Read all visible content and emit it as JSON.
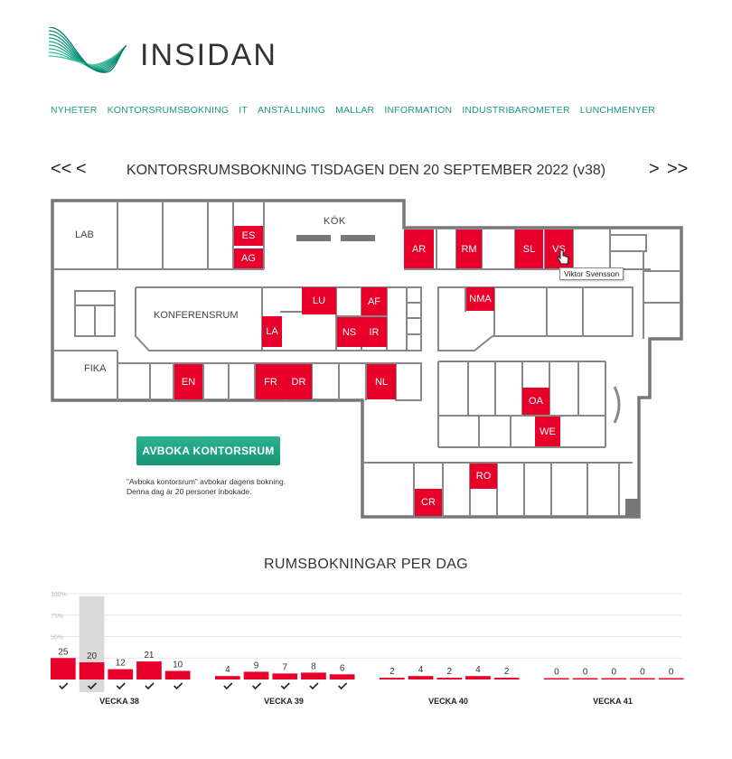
{
  "brand": {
    "name": "INSIDAN",
    "accent": "#1a9b86"
  },
  "nav": [
    "NYHETER",
    "KONTORSRUMSBOKNING",
    "IT",
    "ANSTÄLLNING",
    "MALLAR",
    "INFORMATION",
    "INDUSTRIBAROMETER",
    "LUNCHMENYER"
  ],
  "page": {
    "title": "KONTORSRUMSBOKNING TISDAGEN DEN 20 SEPTEMBER 2022 (v38)",
    "prev_week": "<<",
    "prev_day": "<",
    "next_day": ">",
    "next_week": ">>"
  },
  "floorplan": {
    "areas": {
      "lab": "LAB",
      "kok": "KÖK",
      "konferensrum": "KONFERENSRUM",
      "fika": "FIKA"
    },
    "rooms": [
      "ES",
      "AG",
      "AR",
      "RM",
      "SL",
      "VS",
      "LU",
      "AF",
      "NMA",
      "LA",
      "NS",
      "IR",
      "EN",
      "FR",
      "DR",
      "NL",
      "OA",
      "WE",
      "RO",
      "CR"
    ],
    "booked_color": "#e8002a",
    "tooltip": "Viktor Svensson"
  },
  "unbook": {
    "label": "AVBOKA KONTORSRUM",
    "note_line1": "”Avboka kontorsrum” avbokar dagens bokning.",
    "note_line2": "Denna dag är 20 personer inbokade."
  },
  "chart_data": {
    "type": "bar",
    "title": "RUMSBOKNINGAR PER DAG",
    "y_tick_labels": [
      "100%",
      "75%",
      "50%"
    ],
    "max": 100,
    "selected": {
      "week": 0,
      "day": 1
    },
    "weeks": [
      {
        "name": "VECKA 38",
        "values": [
          25,
          20,
          12,
          21,
          10
        ],
        "checked": [
          true,
          true,
          true,
          true,
          true
        ]
      },
      {
        "name": "VECKA 39",
        "values": [
          4,
          9,
          7,
          8,
          6
        ],
        "checked": [
          true,
          true,
          true,
          true,
          true
        ]
      },
      {
        "name": "VECKA 40",
        "values": [
          2,
          4,
          2,
          4,
          2
        ],
        "checked": [
          false,
          false,
          false,
          false,
          false
        ]
      },
      {
        "name": "VECKA 41",
        "values": [
          0,
          0,
          0,
          0,
          0
        ],
        "checked": [
          false,
          false,
          false,
          false,
          false
        ]
      }
    ]
  }
}
